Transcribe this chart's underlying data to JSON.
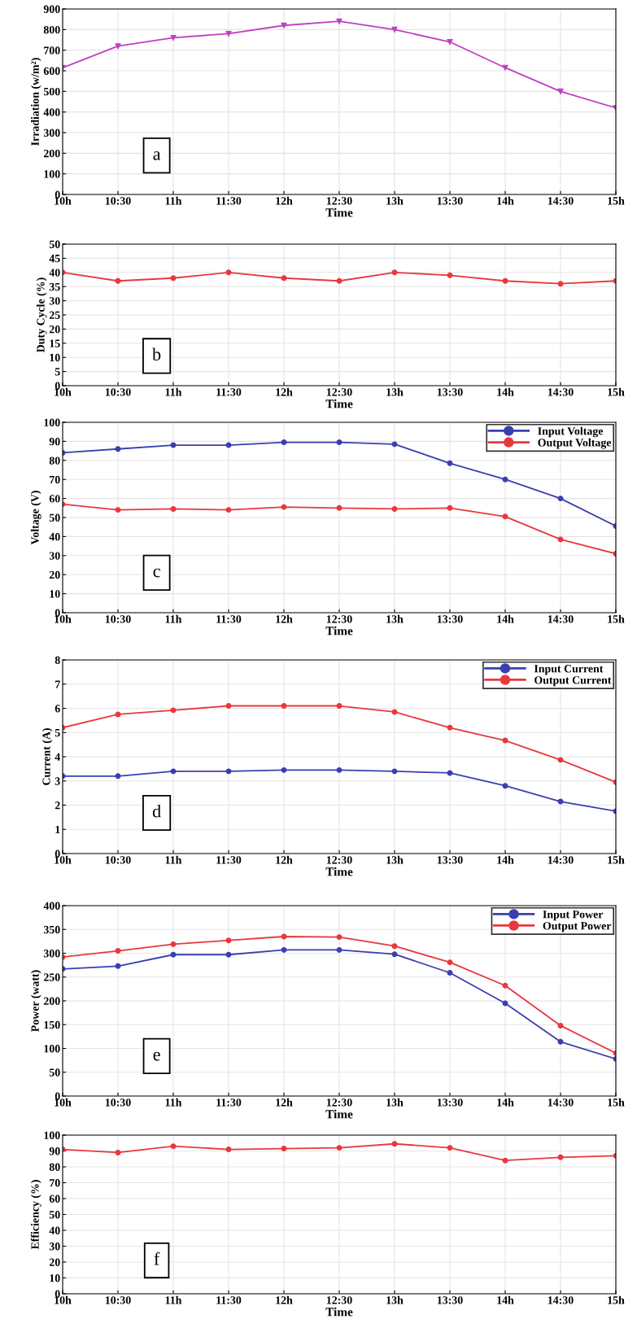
{
  "chart_data": [
    {
      "type": "line",
      "xlabel": "Time",
      "ylabel": "Irradiation (w/m²)",
      "annotations": [
        "a"
      ],
      "categories": [
        "10h",
        "10:30",
        "11h",
        "11:30",
        "12h",
        "12:30",
        "13h",
        "13:30",
        "14h",
        "14:30",
        "15h"
      ],
      "series": [
        {
          "color": "#c040c0",
          "values": [
            615,
            720,
            760,
            780,
            820,
            840,
            800,
            740,
            615,
            500,
            420
          ]
        }
      ],
      "ylim": [
        0,
        900
      ],
      "yticks": [
        0,
        100,
        200,
        300,
        400,
        500,
        600,
        700,
        800,
        900
      ],
      "grid": true,
      "marker": "triangle",
      "line_style": "solid"
    },
    {
      "type": "line",
      "xlabel": "Time",
      "ylabel": "Duty Cycle (%)",
      "annotations": [
        "b"
      ],
      "categories": [
        "10h",
        "10:30",
        "11h",
        "11:30",
        "12h",
        "12:30",
        "13h",
        "13:30",
        "14h",
        "14:30",
        "15h"
      ],
      "series": [
        {
          "color": "#e8383d",
          "values": [
            40,
            37,
            38,
            40,
            38,
            37,
            40,
            39,
            37,
            36,
            37
          ]
        }
      ],
      "ylim": [
        0,
        50
      ],
      "yticks": [
        0,
        5,
        10,
        15,
        20,
        25,
        30,
        35,
        40,
        45,
        50
      ],
      "grid": true,
      "marker": "circle",
      "line_style": "solid"
    },
    {
      "type": "line",
      "xlabel": "Time",
      "ylabel": "Voltage (V)",
      "annotations": [
        "c"
      ],
      "categories": [
        "10h",
        "10:30",
        "11h",
        "11:30",
        "12h",
        "12:30",
        "13h",
        "13:30",
        "14h",
        "14:30",
        "15h"
      ],
      "series": [
        {
          "name": "Input Voltage",
          "color": "#3a3fb0",
          "values": [
            84,
            86,
            88,
            88,
            89.5,
            89.5,
            88.5,
            78.5,
            70,
            60,
            45.5
          ]
        },
        {
          "name": "Output Voltage",
          "color": "#e8383d",
          "values": [
            57,
            54,
            54.5,
            54,
            55.5,
            55,
            54.5,
            55,
            50.5,
            38.5,
            31
          ]
        }
      ],
      "ylim": [
        0,
        100
      ],
      "yticks": [
        0,
        10,
        20,
        30,
        40,
        50,
        60,
        70,
        80,
        90,
        100
      ],
      "grid": true,
      "legend": "top right",
      "marker": "circle",
      "line_style": "solid"
    },
    {
      "type": "line",
      "xlabel": "Time",
      "ylabel": "Current (A)",
      "annotations": [
        "d"
      ],
      "categories": [
        "10h",
        "10:30",
        "11h",
        "11:30",
        "12h",
        "12:30",
        "13h",
        "13:30",
        "14h",
        "14:30",
        "15h"
      ],
      "series": [
        {
          "name": "Input Current",
          "color": "#3a3fb0",
          "values": [
            3.2,
            3.2,
            3.4,
            3.4,
            3.45,
            3.45,
            3.4,
            3.33,
            2.8,
            2.15,
            1.75
          ]
        },
        {
          "name": "Output Current",
          "color": "#e8383d",
          "values": [
            5.2,
            5.75,
            5.92,
            6.1,
            6.1,
            6.1,
            5.85,
            5.2,
            4.67,
            3.87,
            2.95
          ]
        }
      ],
      "ylim": [
        0,
        8
      ],
      "yticks": [
        0,
        1,
        2,
        3,
        4,
        5,
        6,
        7,
        8
      ],
      "grid": true,
      "legend": "top right",
      "marker": "circle",
      "line_style": "solid"
    },
    {
      "type": "line",
      "xlabel": "Time",
      "ylabel": "Power (watt)",
      "annotations": [
        "e"
      ],
      "categories": [
        "10h",
        "10:30",
        "11h",
        "11:30",
        "12h",
        "12:30",
        "13h",
        "13:30",
        "14h",
        "14:30",
        "15h"
      ],
      "series": [
        {
          "name": "Input Power",
          "color": "#3a3fb0",
          "values": [
            267,
            273,
            297,
            297,
            307,
            307,
            298,
            259,
            195,
            114,
            78
          ]
        },
        {
          "name": "Output Power",
          "color": "#e8383d",
          "values": [
            292,
            305,
            319,
            327,
            335,
            334,
            315,
            281,
            232,
            148,
            90
          ]
        }
      ],
      "ylim": [
        0,
        400
      ],
      "yticks": [
        0,
        50,
        100,
        150,
        200,
        250,
        300,
        350,
        400
      ],
      "grid": true,
      "legend": "top right",
      "marker": "circle",
      "line_style": "solid"
    },
    {
      "type": "line",
      "xlabel": "Time",
      "ylabel": "Efficiency (%)",
      "annotations": [
        "f"
      ],
      "categories": [
        "10h",
        "10:30",
        "11h",
        "11:30",
        "12h",
        "12:30",
        "13h",
        "13:30",
        "14h",
        "14:30",
        "15h"
      ],
      "series": [
        {
          "color": "#e8383d",
          "values": [
            91,
            89,
            93,
            91,
            91.5,
            92,
            94.5,
            92,
            84,
            86,
            87
          ]
        }
      ],
      "ylim": [
        0,
        100
      ],
      "yticks": [
        0,
        10,
        20,
        30,
        40,
        50,
        60,
        70,
        80,
        90,
        100
      ],
      "grid": true,
      "marker": "circle",
      "line_style": "solid"
    }
  ]
}
